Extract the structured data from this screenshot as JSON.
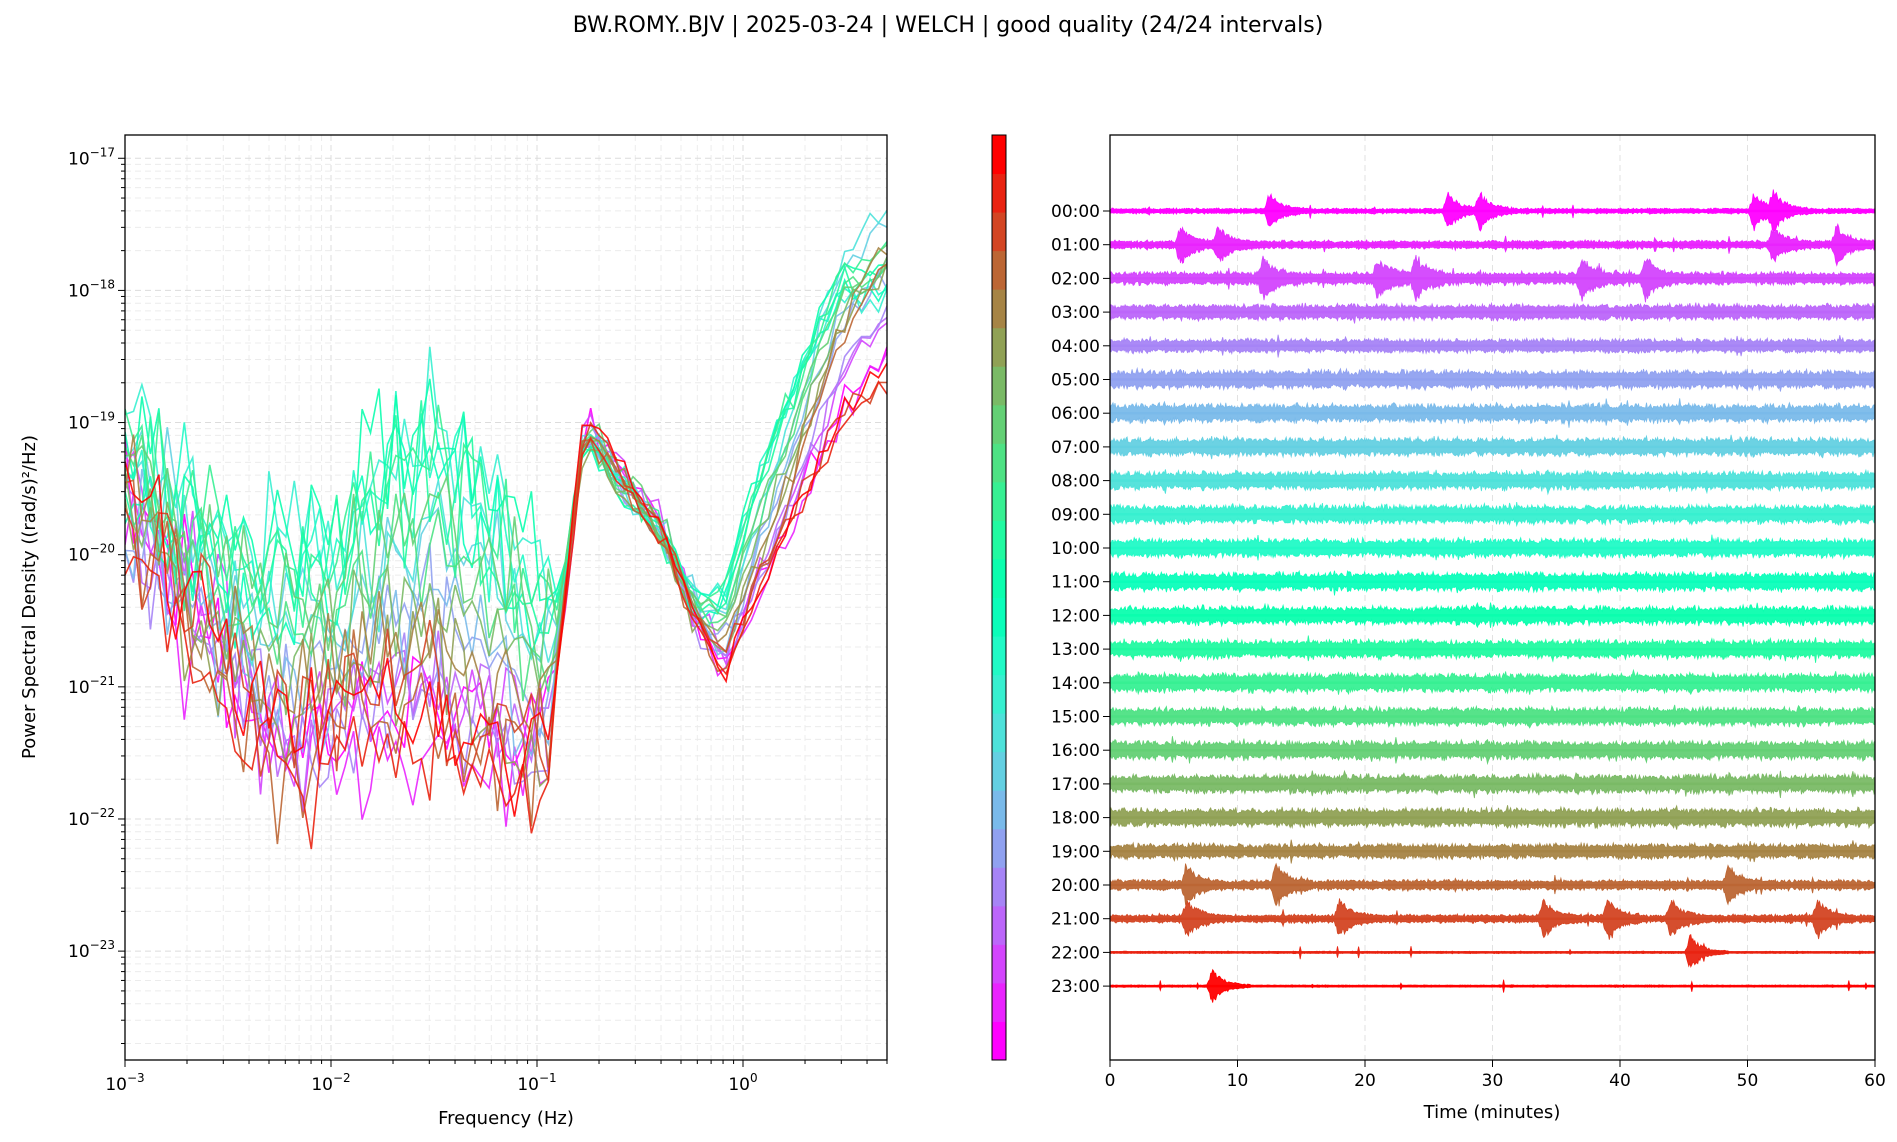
{
  "title": "BW.ROMY..BJV | 2025-03-24 | WELCH | good quality (24/24 intervals)",
  "chart_data": [
    {
      "type": "line",
      "xlabel": "Frequency (Hz)",
      "ylabel": "Power Spectral Density ((rad/s)²/Hz)",
      "xscale": "log",
      "yscale": "log",
      "xlim": [
        0.001,
        5
      ],
      "ylim": [
        1.5e-24,
        1.5e-17
      ],
      "xticks": [
        {
          "v": 0.001,
          "b": "10",
          "e": "−3"
        },
        {
          "v": 0.01,
          "b": "10",
          "e": "−2"
        },
        {
          "v": 0.1,
          "b": "10",
          "e": "−1"
        },
        {
          "v": 1,
          "b": "10",
          "e": "0"
        }
      ],
      "yticks": [
        {
          "v": 1e-23,
          "b": "10",
          "e": "−23"
        },
        {
          "v": 1e-22,
          "b": "10",
          "e": "−22"
        },
        {
          "v": 1e-21,
          "b": "10",
          "e": "−21"
        },
        {
          "v": 1e-20,
          "b": "10",
          "e": "−20"
        },
        {
          "v": 1e-19,
          "b": "10",
          "e": "−19"
        },
        {
          "v": 1e-18,
          "b": "10",
          "e": "−18"
        },
        {
          "v": 1e-17,
          "b": "10",
          "e": "−17"
        }
      ],
      "grid": true,
      "series_count": 24,
      "series_note": "one PSD curve per hourly interval 00:00–23:00, colored with the rainbow colormap (purple→red)",
      "representative_profiles": {
        "quiet_hours": {
          "hours": [
            "00:00",
            "01:00",
            "02:00",
            "03:00",
            "04:00",
            "19:00",
            "20:00",
            "21:00",
            "22:00",
            "23:00"
          ],
          "points": [
            [
              0.001,
              2e-20
            ],
            [
              0.002,
              3e-21
            ],
            [
              0.004,
              4e-22
            ],
            [
              0.006,
              2e-22
            ],
            [
              0.01,
              3e-22
            ],
            [
              0.02,
              5e-22
            ],
            [
              0.04,
              3e-22
            ],
            [
              0.08,
              2e-22
            ],
            [
              0.11,
              2e-22
            ],
            [
              0.13,
              2e-21
            ],
            [
              0.17,
              1e-19
            ],
            [
              0.25,
              4e-20
            ],
            [
              0.4,
              1.5e-20
            ],
            [
              0.6,
              3e-21
            ],
            [
              0.8,
              1.2e-21
            ],
            [
              1.2,
              5e-21
            ],
            [
              2,
              3e-20
            ],
            [
              3,
              1.5e-19
            ],
            [
              5,
              5e-19
            ]
          ]
        },
        "noisy_hours": {
          "hours": [
            "09:00",
            "10:00",
            "11:00",
            "12:00",
            "13:00",
            "14:00",
            "15:00"
          ],
          "points": [
            [
              0.001,
              5e-20
            ],
            [
              0.002,
              2e-20
            ],
            [
              0.004,
              8e-21
            ],
            [
              0.01,
              1e-20
            ],
            [
              0.02,
              5e-20
            ],
            [
              0.03,
              1e-19
            ],
            [
              0.05,
              5e-20
            ],
            [
              0.08,
              8e-21
            ],
            [
              0.11,
              4e-21
            ],
            [
              0.13,
              5e-21
            ],
            [
              0.17,
              8e-20
            ],
            [
              0.25,
              3.5e-20
            ],
            [
              0.4,
              1.5e-20
            ],
            [
              0.6,
              4e-21
            ],
            [
              0.8,
              5e-21
            ],
            [
              1.2,
              4e-20
            ],
            [
              2,
              4e-19
            ],
            [
              3,
              2e-18
            ],
            [
              5,
              2.5e-18
            ]
          ]
        }
      }
    },
    {
      "type": "line",
      "xlabel": "Time (minutes)",
      "xlim": [
        0,
        60
      ],
      "xticks": [
        0,
        10,
        20,
        30,
        40,
        50,
        60
      ],
      "hour_labels": [
        "00:00",
        "01:00",
        "02:00",
        "03:00",
        "04:00",
        "05:00",
        "06:00",
        "07:00",
        "08:00",
        "09:00",
        "10:00",
        "11:00",
        "12:00",
        "13:00",
        "14:00",
        "15:00",
        "16:00",
        "17:00",
        "18:00",
        "19:00",
        "20:00",
        "21:00",
        "22:00",
        "23:00"
      ],
      "grid": true,
      "amplitude_levels": [
        0.3,
        0.45,
        0.7,
        0.85,
        0.75,
        1.0,
        1.0,
        1.0,
        1.0,
        1.0,
        1.0,
        1.0,
        1.0,
        1.0,
        1.0,
        1.0,
        1.0,
        1.0,
        1.0,
        0.8,
        0.55,
        0.45,
        0.12,
        0.12
      ],
      "events": [
        {
          "hour": "00:00",
          "minutes": [
            12.5,
            26.5,
            29,
            50.5,
            52
          ]
        },
        {
          "hour": "01:00",
          "minutes": [
            5.5,
            8.5,
            52,
            57
          ]
        },
        {
          "hour": "02:00",
          "minutes": [
            12,
            21,
            24,
            37,
            42
          ]
        },
        {
          "hour": "20:00",
          "minutes": [
            6,
            13,
            48.5
          ]
        },
        {
          "hour": "21:00",
          "minutes": [
            6,
            18,
            34,
            39,
            44,
            55.5
          ]
        },
        {
          "hour": "22:00",
          "minutes": [
            45.5
          ]
        },
        {
          "hour": "23:00",
          "minutes": [
            8
          ]
        }
      ]
    }
  ],
  "colorbar": {
    "colormap": "rainbow",
    "levels": 24
  }
}
